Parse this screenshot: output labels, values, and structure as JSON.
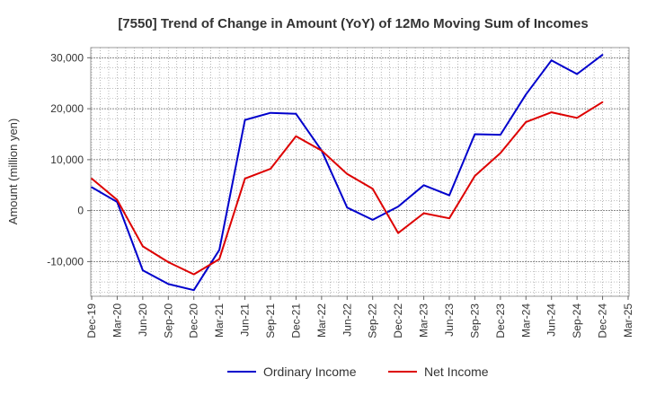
{
  "chart_data": {
    "type": "line",
    "title": "[7550]  Trend of Change in Amount (YoY) of 12Mo Moving Sum of Incomes",
    "ylabel": "Amount (million yen)",
    "xlabel": "",
    "ylim": [
      -16800,
      32000
    ],
    "y_ticks": [
      30000,
      20000,
      10000,
      0,
      -10000
    ],
    "y_tick_labels": [
      "30,000",
      "20,000",
      "10,000",
      "0",
      "-10,000"
    ],
    "categories": [
      "Dec-19",
      "Mar-20",
      "Jun-20",
      "Sep-20",
      "Dec-20",
      "Mar-21",
      "Jun-21",
      "Sep-21",
      "Dec-21",
      "Mar-22",
      "Jun-22",
      "Sep-22",
      "Dec-22",
      "Mar-23",
      "Jun-23",
      "Sep-23",
      "Dec-23",
      "Mar-24",
      "Jun-24",
      "Sep-24",
      "Dec-24",
      "Mar-25"
    ],
    "grid": true,
    "legend_position": "bottom-center",
    "series": [
      {
        "name": "Ordinary Income",
        "color": "#0000cc",
        "values": [
          4600,
          1700,
          -11700,
          -14400,
          -15600,
          -7700,
          17800,
          19200,
          19000,
          11800,
          600,
          -1800,
          800,
          5000,
          3000,
          15000,
          14900,
          22800,
          29500,
          26800,
          30600,
          null
        ]
      },
      {
        "name": "Net Income",
        "color": "#dd0000",
        "values": [
          6300,
          2100,
          -7000,
          -10100,
          -12500,
          -9500,
          6300,
          8200,
          14600,
          11800,
          7200,
          4300,
          -4400,
          -500,
          -1500,
          6800,
          11300,
          17400,
          19300,
          18200,
          21300,
          null
        ]
      }
    ]
  }
}
